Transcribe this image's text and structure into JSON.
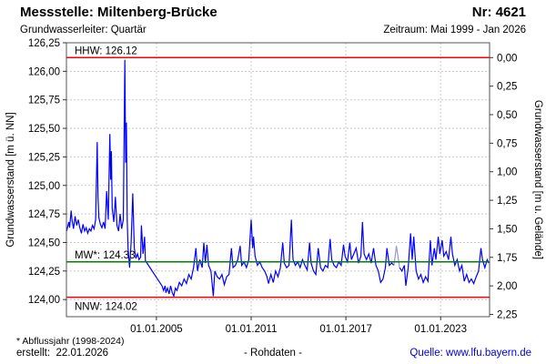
{
  "header": {
    "title": "Messstelle: Miltenberg-Brücke",
    "station_number": "Nr: 4621",
    "aquifer": "Grundwasserleiter: Quartär",
    "period": "Zeitraum: Mai 1999 - Jan 2026"
  },
  "footer": {
    "footnote": "* Abflussjahr (1998-2024)",
    "created": "erstellt:  22.01.2026",
    "data_type": "- Rohdaten -",
    "source": "Quelle: www.lfu.bayern.de",
    "source_color": "#0000dd"
  },
  "chart_data": {
    "type": "line",
    "title": "Messstelle: Miltenberg-Brücke Nr: 4621",
    "grid_color": "#c8c8c8",
    "frame_color": "#555555",
    "tick_color": "#333333",
    "x_axis": {
      "range_years": [
        1999.3,
        2026.1
      ],
      "ticks": [
        {
          "year": 2005,
          "label": "01.01.2005"
        },
        {
          "year": 2011,
          "label": "01.01.2011"
        },
        {
          "year": 2017,
          "label": "01.01.2017"
        },
        {
          "year": 2023,
          "label": "01.01.2023"
        }
      ]
    },
    "y_axis_left": {
      "label": "Grundwasserstand [m ü. NN]",
      "range": [
        123.85,
        126.25
      ],
      "ticks": [
        {
          "value": 126.25,
          "label": "126,25"
        },
        {
          "value": 126.0,
          "label": "126,00"
        },
        {
          "value": 125.75,
          "label": "125,75"
        },
        {
          "value": 125.5,
          "label": "125,50"
        },
        {
          "value": 125.25,
          "label": "125,25"
        },
        {
          "value": 125.0,
          "label": "125,00"
        },
        {
          "value": 124.75,
          "label": "124,75"
        },
        {
          "value": 124.5,
          "label": "124,50"
        },
        {
          "value": 124.25,
          "label": "124,25"
        },
        {
          "value": 124.0,
          "label": "124,00"
        }
      ]
    },
    "y_axis_right": {
      "label": "Grundwasserstand [m u. Gelände]",
      "reference_elevation": 126.12,
      "ticks": [
        {
          "value": 0.0,
          "label": "0,00"
        },
        {
          "value": 0.25,
          "label": "0,25"
        },
        {
          "value": 0.5,
          "label": "0,50"
        },
        {
          "value": 0.75,
          "label": "0,75"
        },
        {
          "value": 1.0,
          "label": "1,00"
        },
        {
          "value": 1.25,
          "label": "1,25"
        },
        {
          "value": 1.5,
          "label": "1,50"
        },
        {
          "value": 1.75,
          "label": "1,75"
        },
        {
          "value": 2.0,
          "label": "2,00"
        },
        {
          "value": 2.25,
          "label": "2,25"
        }
      ]
    },
    "reference_lines": [
      {
        "id": "hhw",
        "label": "HHW: 126.12",
        "value": 126.12,
        "color": "#ff0000",
        "label_pos": "above"
      },
      {
        "id": "mw",
        "label": "MW*: 124.33",
        "value": 124.33,
        "color": "#008000",
        "label_pos": "above"
      },
      {
        "id": "nnw",
        "label": "NNW: 124.02",
        "value": 124.02,
        "color": "#ff0000",
        "label_pos": "below"
      }
    ],
    "series": {
      "name": "Grundwasserstand Rohdaten",
      "color": "#0000ff",
      "segments": [
        [
          [
            1999.32,
            124.6
          ],
          [
            1999.45,
            124.68
          ],
          [
            1999.5,
            124.63
          ],
          [
            1999.6,
            124.78
          ],
          [
            1999.65,
            124.7
          ],
          [
            1999.75,
            124.62
          ],
          [
            1999.85,
            124.73
          ],
          [
            1999.95,
            124.65
          ],
          [
            2000.05,
            124.7
          ],
          [
            2000.15,
            124.63
          ],
          [
            2000.25,
            124.58
          ],
          [
            2000.35,
            124.66
          ],
          [
            2000.45,
            124.6
          ],
          [
            2000.55,
            124.63
          ],
          [
            2000.65,
            124.58
          ],
          [
            2000.75,
            124.62
          ],
          [
            2000.85,
            124.6
          ],
          [
            2000.95,
            124.65
          ],
          [
            2001.05,
            124.62
          ],
          [
            2001.15,
            124.7
          ],
          [
            2001.25,
            125.38
          ],
          [
            2001.3,
            124.9
          ],
          [
            2001.35,
            124.72
          ],
          [
            2001.45,
            124.66
          ],
          [
            2001.55,
            124.63
          ],
          [
            2001.65,
            124.68
          ],
          [
            2001.75,
            124.62
          ],
          [
            2001.85,
            124.95
          ],
          [
            2001.95,
            124.7
          ],
          [
            2002.05,
            125.45
          ],
          [
            2002.1,
            125.05
          ],
          [
            2002.15,
            125.3
          ],
          [
            2002.2,
            124.8
          ],
          [
            2002.3,
            124.68
          ],
          [
            2002.4,
            124.9
          ],
          [
            2002.5,
            124.65
          ],
          [
            2002.6,
            124.6
          ],
          [
            2002.7,
            124.75
          ],
          [
            2002.8,
            124.62
          ],
          [
            2002.9,
            124.7
          ],
          [
            2003.0,
            126.1
          ],
          [
            2003.05,
            125.2
          ],
          [
            2003.1,
            125.55
          ],
          [
            2003.15,
            124.7
          ],
          [
            2003.2,
            124.45
          ],
          [
            2003.3,
            124.28
          ],
          [
            2003.4,
            124.5
          ],
          [
            2003.5,
            124.93
          ],
          [
            2003.6,
            124.45
          ],
          [
            2003.7,
            124.36
          ],
          [
            2003.8,
            124.4
          ],
          [
            2003.9,
            124.35
          ],
          [
            2004.0,
            124.37
          ],
          [
            2004.05,
            124.65
          ],
          [
            2004.15,
            124.4
          ],
          [
            2004.25,
            124.55
          ],
          [
            2004.3,
            124.34
          ],
          [
            2005.35,
            124.12
          ],
          [
            2005.45,
            124.08
          ],
          [
            2005.55,
            124.12
          ],
          [
            2005.6,
            124.06
          ],
          [
            2005.7,
            124.1
          ],
          [
            2005.8,
            124.05
          ],
          [
            2005.9,
            124.12
          ],
          [
            2006.0,
            124.06
          ],
          [
            2006.1,
            124.03
          ],
          [
            2006.2,
            124.1
          ],
          [
            2006.3,
            124.08
          ],
          [
            2006.45,
            124.15
          ],
          [
            2006.6,
            124.12
          ],
          [
            2006.75,
            124.18
          ],
          [
            2006.9,
            124.14
          ],
          [
            2007.05,
            124.22
          ],
          [
            2007.2,
            124.18
          ],
          [
            2007.35,
            124.28
          ],
          [
            2007.5,
            124.45
          ],
          [
            2007.6,
            124.25
          ],
          [
            2007.75,
            124.35
          ],
          [
            2007.9,
            124.28
          ],
          [
            2008.0,
            124.5
          ],
          [
            2008.1,
            124.32
          ],
          [
            2008.2,
            124.48
          ],
          [
            2008.3,
            124.3
          ],
          [
            2008.45,
            124.25
          ],
          [
            2008.6,
            124.03
          ],
          [
            2008.7,
            124.25
          ],
          [
            2008.85,
            124.2
          ],
          [
            2009.0,
            124.18
          ],
          [
            2009.15,
            124.22
          ],
          [
            2009.3,
            124.13
          ],
          [
            2009.45,
            124.2
          ],
          [
            2009.6,
            124.22
          ],
          [
            2009.75,
            124.45
          ],
          [
            2009.85,
            124.28
          ],
          [
            2010.0,
            124.3
          ],
          [
            2010.15,
            124.35
          ],
          [
            2010.3,
            124.47
          ],
          [
            2010.4,
            124.3
          ],
          [
            2010.55,
            124.33
          ],
          [
            2010.7,
            124.28
          ],
          [
            2010.85,
            124.35
          ],
          [
            2011.0,
            124.7
          ],
          [
            2011.1,
            124.45
          ],
          [
            2011.15,
            124.55
          ],
          [
            2011.25,
            124.38
          ],
          [
            2011.4,
            124.3
          ],
          [
            2011.55,
            124.33
          ],
          [
            2011.7,
            124.28
          ],
          [
            2011.85,
            124.25
          ],
          [
            2012.0,
            124.2
          ],
          [
            2012.1,
            124.14
          ],
          [
            2012.25,
            124.22
          ],
          [
            2012.4,
            124.15
          ],
          [
            2012.55,
            124.25
          ],
          [
            2012.7,
            124.2
          ],
          [
            2012.85,
            124.28
          ],
          [
            2013.0,
            124.5
          ],
          [
            2013.1,
            124.32
          ],
          [
            2013.25,
            124.28
          ],
          [
            2013.4,
            124.3
          ],
          [
            2013.55,
            124.7
          ],
          [
            2013.65,
            124.35
          ],
          [
            2013.8,
            124.3
          ],
          [
            2013.95,
            124.33
          ],
          [
            2014.1,
            124.28
          ],
          [
            2014.25,
            124.35
          ],
          [
            2014.4,
            124.3
          ],
          [
            2014.55,
            124.26
          ],
          [
            2014.7,
            124.5
          ],
          [
            2014.8,
            124.32
          ],
          [
            2014.95,
            124.25
          ],
          [
            2015.1,
            124.22
          ],
          [
            2015.25,
            124.45
          ],
          [
            2015.4,
            124.28
          ],
          [
            2015.55,
            124.25
          ],
          [
            2015.7,
            124.3
          ],
          [
            2015.85,
            124.28
          ],
          [
            2016.0,
            124.53
          ],
          [
            2016.1,
            124.35
          ],
          [
            2016.25,
            124.3
          ],
          [
            2016.4,
            124.28
          ],
          [
            2016.55,
            124.33
          ],
          [
            2016.7,
            124.3
          ],
          [
            2016.85,
            124.48
          ],
          [
            2016.95,
            124.38
          ],
          [
            2017.1,
            124.33
          ],
          [
            2017.25,
            124.5
          ],
          [
            2017.35,
            124.35
          ],
          [
            2017.5,
            124.4
          ],
          [
            2017.65,
            124.45
          ],
          [
            2017.8,
            124.32
          ],
          [
            2017.95,
            124.38
          ],
          [
            2018.05,
            124.68
          ],
          [
            2018.15,
            124.4
          ],
          [
            2018.3,
            124.35
          ],
          [
            2018.45,
            124.4
          ],
          [
            2018.6,
            124.32
          ],
          [
            2018.75,
            124.45
          ],
          [
            2018.9,
            124.3
          ],
          [
            2019.05,
            124.25
          ],
          [
            2019.2,
            124.15
          ],
          [
            2019.35,
            124.18
          ],
          [
            2019.5,
            124.28
          ],
          [
            2019.6,
            124.45
          ],
          [
            2019.75,
            124.3
          ],
          [
            2019.9,
            124.32
          ],
          [
            2020.05,
            124.3
          ]
        ],
        [
          [
            2020.4,
            124.28
          ],
          [
            2020.55,
            124.25
          ],
          [
            2020.7,
            124.3
          ],
          [
            2020.8,
            124.12
          ],
          [
            2020.95,
            124.28
          ],
          [
            2021.1,
            124.58
          ],
          [
            2021.2,
            124.35
          ],
          [
            2021.3,
            124.55
          ],
          [
            2021.45,
            124.25
          ],
          [
            2021.6,
            124.18
          ],
          [
            2021.75,
            124.22
          ],
          [
            2021.9,
            124.15
          ],
          [
            2022.05,
            124.2
          ],
          [
            2022.2,
            124.16
          ],
          [
            2022.35,
            124.52
          ],
          [
            2022.45,
            124.3
          ],
          [
            2022.6,
            124.45
          ],
          [
            2022.7,
            124.35
          ],
          [
            2022.85,
            124.55
          ],
          [
            2022.95,
            124.4
          ],
          [
            2023.1,
            124.52
          ],
          [
            2023.2,
            124.38
          ],
          [
            2023.35,
            124.42
          ],
          [
            2023.5,
            124.35
          ],
          [
            2023.65,
            124.55
          ],
          [
            2023.75,
            124.4
          ],
          [
            2023.9,
            124.3
          ],
          [
            2024.05,
            124.35
          ],
          [
            2024.2,
            124.25
          ],
          [
            2024.35,
            124.3
          ],
          [
            2024.5,
            124.16
          ],
          [
            2024.65,
            124.22
          ],
          [
            2024.8,
            124.15
          ],
          [
            2024.95,
            124.18
          ],
          [
            2025.1,
            124.14
          ],
          [
            2025.25,
            124.2
          ],
          [
            2025.4,
            124.25
          ],
          [
            2025.55,
            124.45
          ],
          [
            2025.65,
            124.35
          ],
          [
            2025.8,
            124.28
          ],
          [
            2025.95,
            124.35
          ],
          [
            2026.05,
            124.32
          ]
        ]
      ]
    },
    "interpolated_segment": {
      "color": "#9999cc",
      "points": [
        [
          2020.05,
          124.3
        ],
        [
          2020.2,
          124.47
        ],
        [
          2020.4,
          124.28
        ]
      ]
    }
  }
}
